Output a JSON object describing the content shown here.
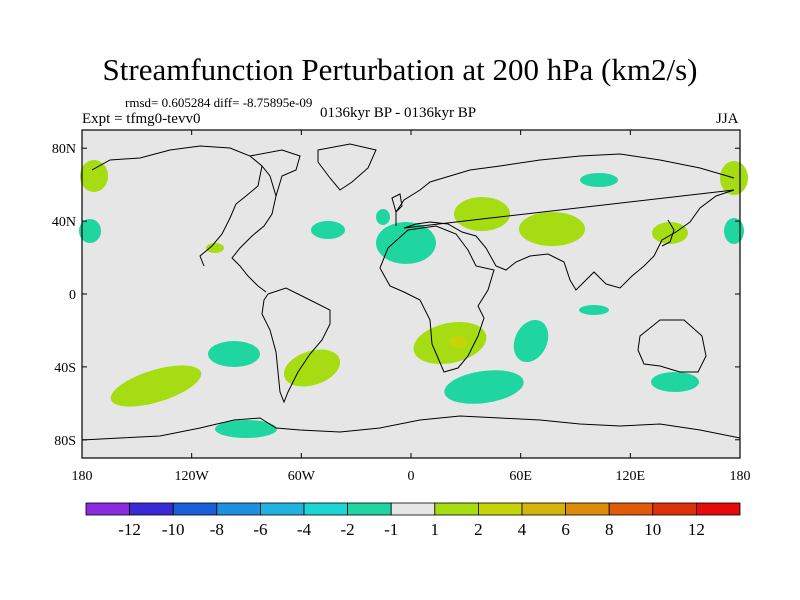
{
  "title": "Streamfunction Perturbation at 200 hPa (km2/s)",
  "stats": "rmsd= 0.605284 diff= -8.75895e-09",
  "expt": "Expt = tfmg0-tevv0",
  "period": "0136kyr BP - 0136kyr BP",
  "season": "JJA",
  "map": {
    "lon_range": [
      -180,
      180
    ],
    "lat_range": [
      -90,
      90
    ],
    "lat_ticks": [
      {
        "value": 80,
        "label": "80N"
      },
      {
        "value": 40,
        "label": "40N"
      },
      {
        "value": 0,
        "label": "0"
      },
      {
        "value": -40,
        "label": "40S"
      },
      {
        "value": -80,
        "label": "80S"
      }
    ],
    "lon_ticks": [
      {
        "value": -180,
        "label": "180"
      },
      {
        "value": -120,
        "label": "120W"
      },
      {
        "value": -60,
        "label": "60W"
      },
      {
        "value": 0,
        "label": "0"
      },
      {
        "value": 60,
        "label": "60E"
      },
      {
        "value": 120,
        "label": "120E"
      },
      {
        "value": 180,
        "label": "180"
      }
    ],
    "ocean_color": "#e6e6e6",
    "coast_color": "#000000"
  },
  "colorbar": {
    "colors": [
      "#8a2be2",
      "#3a2ad6",
      "#1a5fd8",
      "#1f8fe0",
      "#21b3e0",
      "#1cd6d6",
      "#20d6a0",
      "#e6e6e6",
      "#a6dc12",
      "#c8d40a",
      "#d4b40a",
      "#dc8c0a",
      "#e05a0a",
      "#e0300a",
      "#e60a0a"
    ],
    "labels": [
      "-12",
      "-10",
      "-8",
      "-6",
      "-4",
      "-2",
      "-1",
      "1",
      "2",
      "4",
      "6",
      "8",
      "10",
      "12"
    ]
  }
}
